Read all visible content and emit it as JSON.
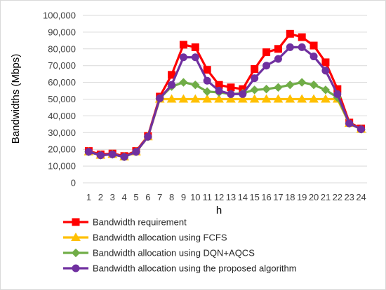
{
  "chart_data": {
    "type": "line",
    "xlabel": "h",
    "ylabel": "Bandwidths (Mbps)",
    "categories": [
      "1",
      "2",
      "3",
      "4",
      "5",
      "6",
      "7",
      "8",
      "9",
      "10",
      "11",
      "12",
      "13",
      "14",
      "15",
      "16",
      "17",
      "18",
      "19",
      "20",
      "21",
      "22",
      "23",
      "24"
    ],
    "ylim": [
      0,
      100000
    ],
    "yticks": [
      0,
      10000,
      20000,
      30000,
      40000,
      50000,
      60000,
      70000,
      80000,
      90000,
      100000
    ],
    "ytick_labels": [
      "0",
      "10,000",
      "20,000",
      "30,000",
      "40,000",
      "50,000",
      "60,000",
      "70,000",
      "80,000",
      "90,000",
      "100,000"
    ],
    "grid": true,
    "legend_position": "bottom",
    "series": [
      {
        "name": "Bandwidth requirement",
        "color": "#ff0000",
        "marker": "square",
        "values": [
          19000,
          17000,
          17500,
          16000,
          19000,
          28000,
          51500,
          64500,
          82500,
          81000,
          67500,
          58500,
          57000,
          56000,
          68000,
          78000,
          80000,
          89000,
          87000,
          82000,
          72000,
          56000,
          36000,
          32500
        ]
      },
      {
        "name": "Bandwidth allocation using FCFS",
        "color": "#ffc000",
        "marker": "triangle",
        "values": [
          18500,
          16500,
          17000,
          15500,
          18500,
          27500,
          50000,
          50000,
          50000,
          50000,
          50000,
          50000,
          50000,
          50000,
          50000,
          50000,
          50000,
          50000,
          50000,
          50000,
          50000,
          50000,
          35500,
          32000
        ]
      },
      {
        "name": "Bandwidth allocation using DQN+AQCS",
        "color": "#70ad47",
        "marker": "diamond",
        "values": [
          18500,
          16500,
          17000,
          15500,
          18500,
          27500,
          50500,
          57500,
          60000,
          58500,
          54500,
          54000,
          53000,
          53500,
          55500,
          56000,
          57000,
          58500,
          60000,
          58500,
          55500,
          51000,
          35500,
          32000
        ]
      },
      {
        "name": "Bandwidth allocation using the proposed algorithm",
        "color": "#7030a0",
        "marker": "circle",
        "values": [
          18500,
          16500,
          17000,
          15500,
          18500,
          27500,
          50500,
          58500,
          75000,
          75000,
          61000,
          55000,
          53000,
          53000,
          62500,
          70000,
          74000,
          81000,
          81000,
          75500,
          67000,
          53000,
          35500,
          32000
        ]
      }
    ]
  }
}
